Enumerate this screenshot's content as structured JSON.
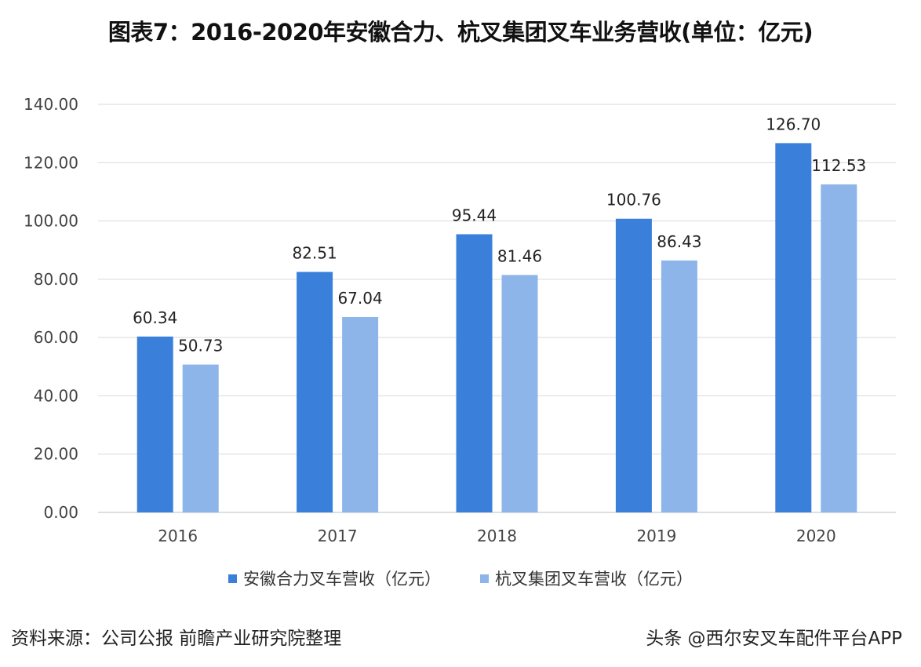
{
  "chart_data": {
    "type": "bar",
    "title": "图表7：2016-2020年安徽合力、杭叉集团叉车业务营收(单位：亿元)",
    "categories": [
      "2016",
      "2017",
      "2018",
      "2019",
      "2020"
    ],
    "series": [
      {
        "name": "安徽合力叉车营收（亿元）",
        "color": "#3a80db",
        "values": [
          60.34,
          82.51,
          95.44,
          100.76,
          126.7
        ],
        "labels": [
          "60.34",
          "82.51",
          "95.44",
          "100.76",
          "126.70"
        ]
      },
      {
        "name": "杭叉集团叉车营收（亿元）",
        "color": "#8db5ea",
        "values": [
          50.73,
          67.04,
          81.46,
          86.43,
          112.53
        ],
        "labels": [
          "50.73",
          "67.04",
          "81.46",
          "86.43",
          "112.53"
        ]
      }
    ],
    "ylim": [
      0,
      140
    ],
    "yticks": [
      "0.00",
      "20.00",
      "40.00",
      "60.00",
      "80.00",
      "100.00",
      "120.00",
      "140.00"
    ],
    "grid": true,
    "legend_placement": "bottom",
    "xlabel": "",
    "ylabel": ""
  },
  "source": "资料来源：公司公报 前瞻产业研究院整理",
  "watermark": "头条 @西尔安叉车配件平台APP"
}
